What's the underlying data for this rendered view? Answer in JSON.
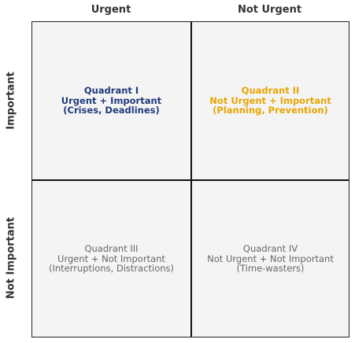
{
  "columns": {
    "urgent": "Urgent",
    "not_urgent": "Not Urgent"
  },
  "rows": {
    "important": "Important",
    "not_important": "Not Important"
  },
  "quadrants": [
    {
      "title": "Quadrant I",
      "category": "Urgent + Important",
      "examples": "(Crises, Deadlines)",
      "color": "#1f3a7a",
      "emphasis": "bold"
    },
    {
      "title": "Quadrant II",
      "category": "Not Urgent + Important",
      "examples": "(Planning, Prevention)",
      "color": "#e8a500",
      "emphasis": "bold"
    },
    {
      "title": "Quadrant III",
      "category": "Urgent + Not Important",
      "examples": "(Interruptions, Distractions)",
      "color": "#666666",
      "emphasis": "normal"
    },
    {
      "title": "Quadrant IV",
      "category": "Not Urgent + Not Important",
      "examples": "(Time-wasters)",
      "color": "#666666",
      "emphasis": "normal"
    }
  ],
  "colors": {
    "cell_background": "#f4f4f4",
    "grid_line": "#111111",
    "header_text": "#333333"
  }
}
